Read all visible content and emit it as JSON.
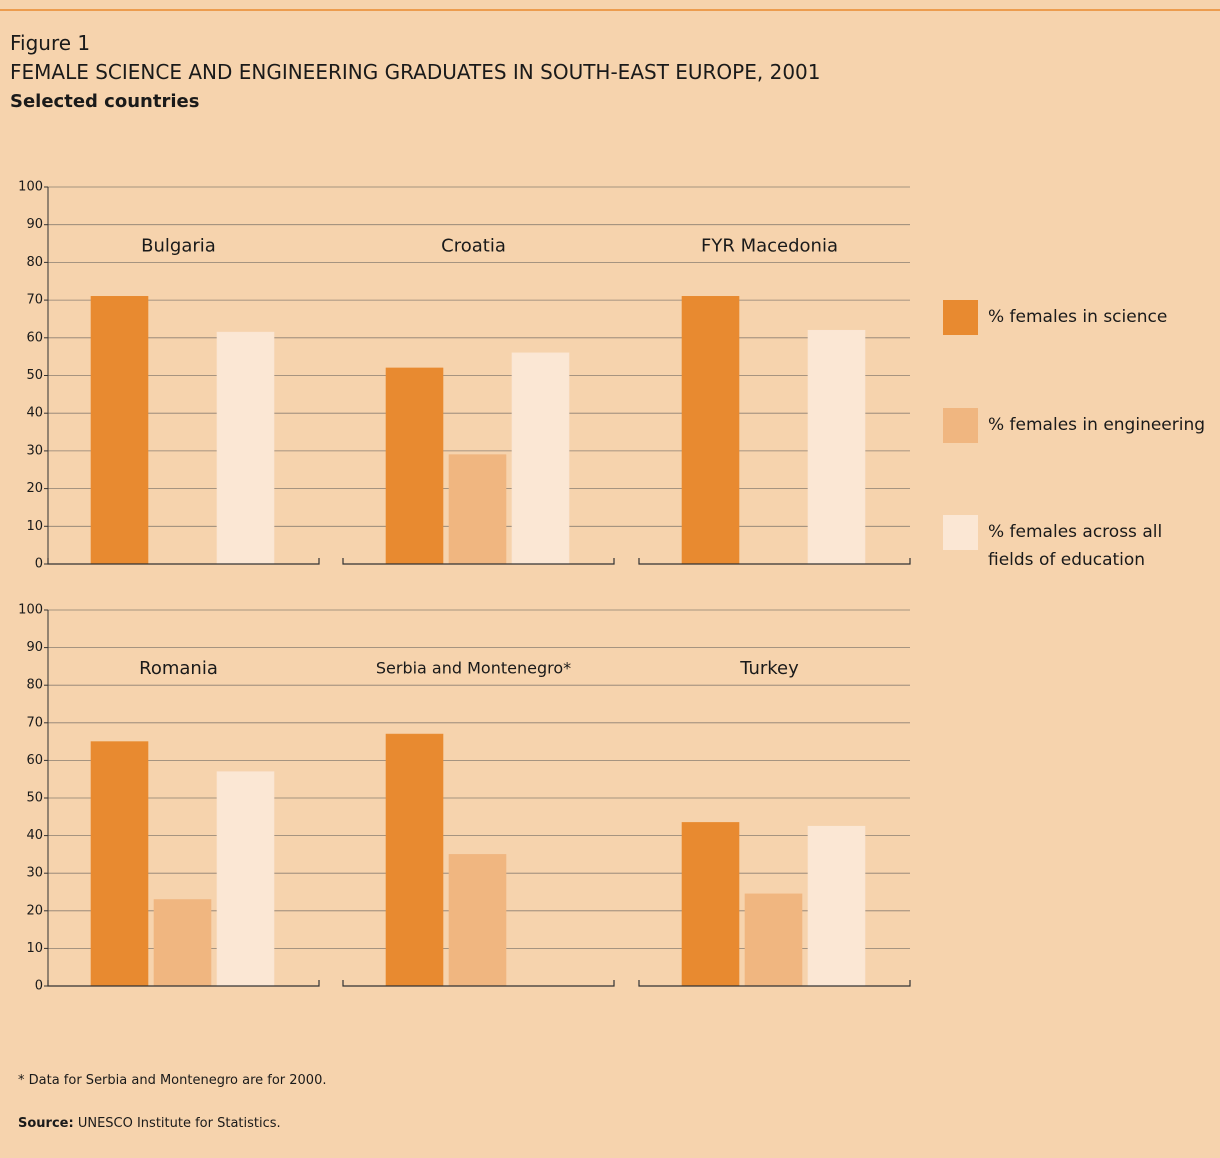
{
  "figure_label": "Figure 1",
  "title": "FEMALE SCIENCE AND ENGINEERING GRADUATES IN SOUTH-EAST EUROPE, 2001",
  "subtitle": "Selected countries",
  "series": [
    {
      "name": "% females in science",
      "color": "#e88a30"
    },
    {
      "name": "% females in engineering",
      "color": "#f0b680"
    },
    {
      "name": "% females across all fields of education",
      "color": "#fbe7d4"
    }
  ],
  "chart_data": [
    {
      "type": "bar",
      "ylim": [
        0,
        100
      ],
      "yticks": [
        0,
        10,
        20,
        30,
        40,
        50,
        60,
        70,
        80,
        90,
        100
      ],
      "grid": true,
      "panels": [
        {
          "title": "Bulgaria",
          "values": [
            71,
            0,
            61.5
          ]
        },
        {
          "title": "Croatia",
          "values": [
            52,
            29,
            56
          ]
        },
        {
          "title": "FYR Macedonia",
          "values": [
            71,
            0,
            62
          ]
        }
      ]
    },
    {
      "type": "bar",
      "ylim": [
        0,
        100
      ],
      "yticks": [
        0,
        10,
        20,
        30,
        40,
        50,
        60,
        70,
        80,
        90,
        100
      ],
      "grid": true,
      "panels": [
        {
          "title": "Romania",
          "values": [
            65,
            23,
            57
          ]
        },
        {
          "title": "Serbia and Montenegro*",
          "values": [
            67,
            35,
            0
          ]
        },
        {
          "title": "Turkey",
          "values": [
            43.5,
            24.5,
            42.5
          ]
        }
      ]
    }
  ],
  "footnote": "* Data for Serbia and Montenegro are for 2000.",
  "source": {
    "label": "Source:",
    "text": "UNESCO Institute for Statistics."
  }
}
